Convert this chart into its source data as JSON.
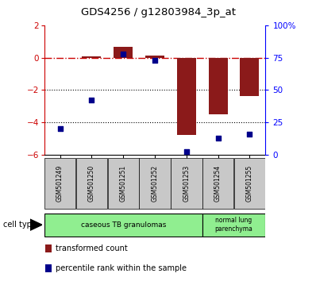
{
  "title": "GDS4256 / g12803984_3p_at",
  "samples": [
    "GSM501249",
    "GSM501250",
    "GSM501251",
    "GSM501252",
    "GSM501253",
    "GSM501254",
    "GSM501255"
  ],
  "transformed_count": [
    0.0,
    0.1,
    0.65,
    0.15,
    -4.8,
    -3.5,
    -2.4
  ],
  "percentile_rank": [
    20,
    42,
    78,
    73,
    2,
    13,
    16
  ],
  "bar_color": "#8B1A1A",
  "point_color": "#00008B",
  "dashed_line_color": "#CC0000",
  "ylim_left": [
    -6,
    2
  ],
  "ylim_right": [
    0,
    100
  ],
  "yticks_left": [
    -6,
    -4,
    -2,
    0,
    2
  ],
  "yticks_right": [
    0,
    25,
    50,
    75,
    100
  ],
  "ytick_labels_right": [
    "0",
    "25",
    "50",
    "75",
    "100%"
  ],
  "grid_dotted_levels": [
    -2,
    -4
  ],
  "bar_width": 0.6,
  "figsize": [
    3.98,
    3.54
  ],
  "dpi": 100
}
